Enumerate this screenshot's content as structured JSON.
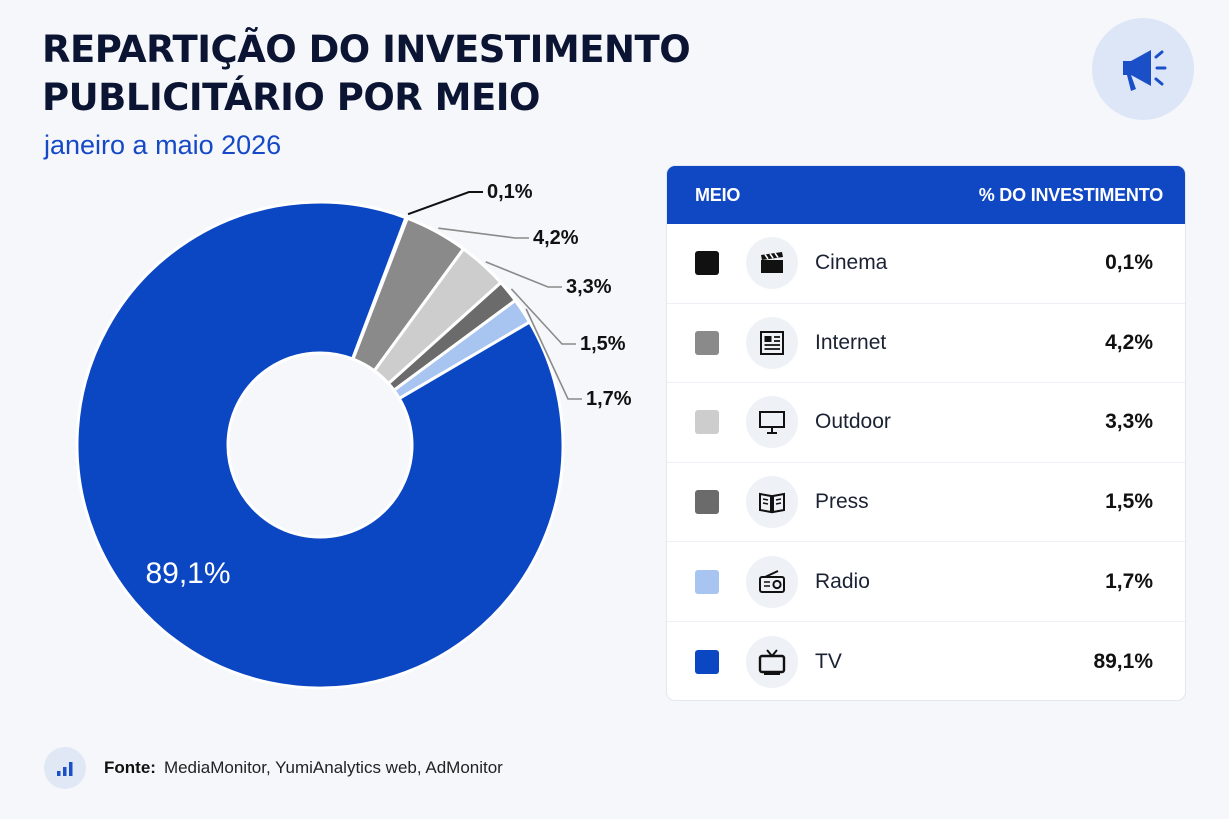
{
  "header": {
    "title": "Repartição do investimento publicitário por meio",
    "subtitle": "janeiro a maio 2026",
    "badge_icon": "megaphone-icon"
  },
  "chart_data": {
    "type": "pie",
    "variant": "donut",
    "title": "Repartição do investimento publicitário por meio",
    "subtitle": "janeiro a maio 2026",
    "categories": [
      "Cinema",
      "Internet",
      "Outdoor",
      "Press",
      "Radio",
      "TV"
    ],
    "values": [
      0.1,
      4.2,
      3.3,
      1.5,
      1.7,
      89.1
    ],
    "value_labels": [
      "0,1%",
      "4,2%",
      "3,3%",
      "1,5%",
      "1,7%",
      "89,1%"
    ],
    "colors": [
      "#111111",
      "#8a8a8a",
      "#cdcdcd",
      "#6b6b6b",
      "#a8c4f0",
      "#0b47c3"
    ],
    "unit": "%",
    "legend_placement": "right"
  },
  "legend": {
    "header_left": "MEIO",
    "header_right": "% DO INVESTIMENTO",
    "rows": [
      {
        "name": "Cinema",
        "value": "0,1%",
        "color": "#111111",
        "icon": "clapperboard-icon"
      },
      {
        "name": "Internet",
        "value": "4,2%",
        "color": "#8a8a8a",
        "icon": "newspaper-icon"
      },
      {
        "name": "Outdoor",
        "value": "3,3%",
        "color": "#cdcdcd",
        "icon": "billboard-icon"
      },
      {
        "name": "Press",
        "value": "1,5%",
        "color": "#6b6b6b",
        "icon": "open-book-icon"
      },
      {
        "name": "Radio",
        "value": "1,7%",
        "color": "#a8c4f0",
        "icon": "radio-icon"
      },
      {
        "name": "TV",
        "value": "89,1%",
        "color": "#0b47c3",
        "icon": "tv-icon"
      }
    ]
  },
  "footer": {
    "label": "Fonte:",
    "text": "MediaMonitor, YumiAnalytics web, AdMonitor",
    "icon": "bar-chart-icon"
  }
}
